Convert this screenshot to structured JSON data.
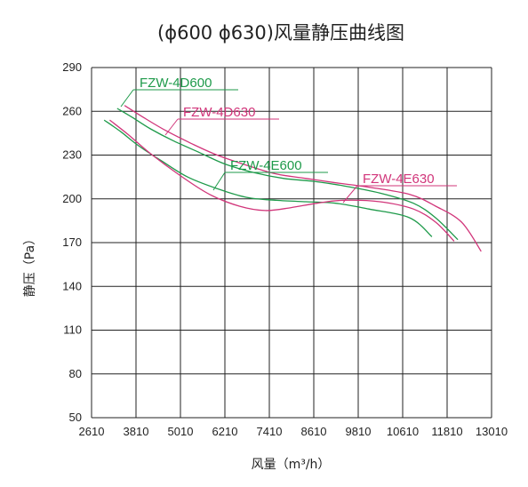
{
  "chart_data": {
    "type": "line",
    "title": "(ϕ600  ϕ630)风量静压曲线图",
    "xlabel": "风量（m³/h）",
    "ylabel": "静压（Pa）",
    "xlim": [
      2610,
      13010
    ],
    "ylim": [
      50,
      290
    ],
    "xticks": [
      2610,
      3810,
      5010,
      6210,
      7410,
      8610,
      9810,
      10610,
      11810,
      13010
    ],
    "yticks": [
      50,
      80,
      110,
      140,
      170,
      200,
      230,
      260,
      290
    ],
    "grid": true,
    "series": [
      {
        "name": "FZW-4D600",
        "color": "#1e9a4a",
        "x": [
          3300,
          3700,
          4200,
          4800,
          5500,
          6200,
          7000,
          7800,
          8600,
          9400,
          10200,
          10900,
          11500,
          12100
        ],
        "y": [
          262,
          256,
          248,
          240,
          232,
          224,
          218,
          214,
          212,
          209,
          204,
          197,
          187,
          172
        ]
      },
      {
        "name": "FZW-4D630",
        "color": "#d1357a",
        "x": [
          3500,
          4000,
          4600,
          5300,
          6000,
          6800,
          7600,
          8400,
          9200,
          10000,
          10800,
          11500,
          12200,
          12730
        ],
        "y": [
          264,
          256,
          247,
          238,
          230,
          223,
          217,
          214,
          211,
          208,
          203,
          195,
          184,
          164
        ]
      },
      {
        "name": "FZW-4E600",
        "color": "#1e9a4a",
        "x": [
          2950,
          3400,
          3900,
          4500,
          5200,
          6000,
          6800,
          7600,
          8400,
          9200,
          10000,
          10800,
          11400
        ],
        "y": [
          254,
          246,
          236,
          226,
          215,
          207,
          201,
          199,
          198,
          197,
          193,
          187,
          174
        ]
      },
      {
        "name": "FZW-4E630",
        "color": "#d1357a",
        "x": [
          3100,
          3600,
          4200,
          5000,
          5800,
          6600,
          7300,
          8000,
          8700,
          9400,
          10200,
          10900,
          11500,
          12000
        ],
        "y": [
          254,
          244,
          231,
          216,
          203,
          195,
          192,
          194,
          197,
          199,
          198,
          193,
          184,
          171
        ]
      }
    ]
  }
}
